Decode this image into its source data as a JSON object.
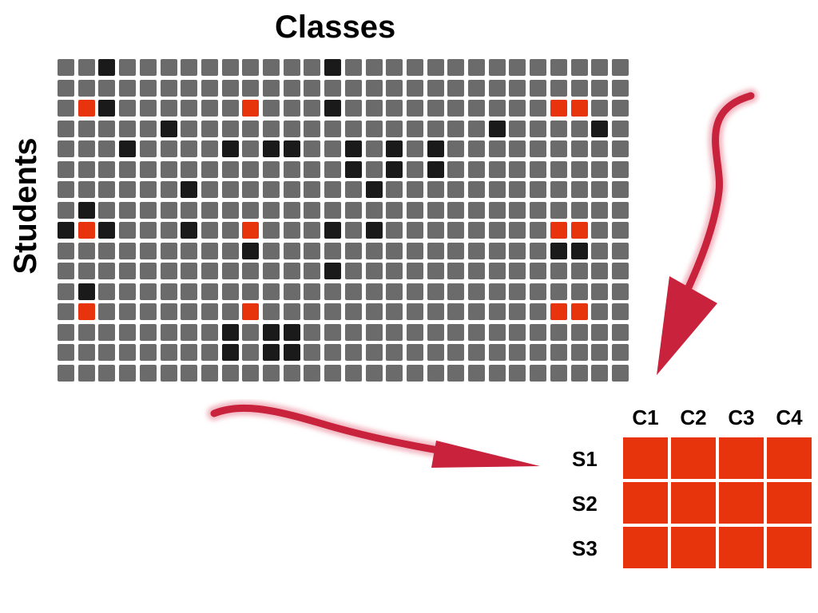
{
  "titles": {
    "columns": "Classes",
    "rows": "Students"
  },
  "colors": {
    "empty": "#6b6b6b",
    "black": "#1a1a1a",
    "red": "#e8340d",
    "arrow": "#c8223c"
  },
  "grid": {
    "rows": 16,
    "cols": 28,
    "black": [
      [
        0,
        2
      ],
      [
        0,
        13
      ],
      [
        2,
        2
      ],
      [
        2,
        13
      ],
      [
        3,
        5
      ],
      [
        3,
        21
      ],
      [
        3,
        26
      ],
      [
        4,
        3
      ],
      [
        4,
        8
      ],
      [
        4,
        10
      ],
      [
        4,
        11
      ],
      [
        4,
        14
      ],
      [
        4,
        16
      ],
      [
        4,
        18
      ],
      [
        5,
        14
      ],
      [
        5,
        16
      ],
      [
        5,
        18
      ],
      [
        6,
        6
      ],
      [
        6,
        15
      ],
      [
        7,
        1
      ],
      [
        8,
        0
      ],
      [
        8,
        2
      ],
      [
        8,
        6
      ],
      [
        8,
        13
      ],
      [
        8,
        15
      ],
      [
        9,
        9
      ],
      [
        9,
        24
      ],
      [
        9,
        25
      ],
      [
        10,
        13
      ],
      [
        11,
        1
      ],
      [
        13,
        8
      ],
      [
        13,
        10
      ],
      [
        13,
        11
      ],
      [
        14,
        8
      ],
      [
        14,
        10
      ],
      [
        14,
        11
      ]
    ],
    "red": [
      [
        2,
        1
      ],
      [
        2,
        9
      ],
      [
        2,
        24
      ],
      [
        2,
        25
      ],
      [
        8,
        1
      ],
      [
        8,
        9
      ],
      [
        8,
        24
      ],
      [
        8,
        25
      ],
      [
        12,
        1
      ],
      [
        12,
        9
      ],
      [
        12,
        24
      ],
      [
        12,
        25
      ]
    ]
  },
  "matrix": {
    "columns": [
      "C1",
      "C2",
      "C3",
      "C4"
    ],
    "rows": [
      "S1",
      "S2",
      "S3"
    ]
  }
}
